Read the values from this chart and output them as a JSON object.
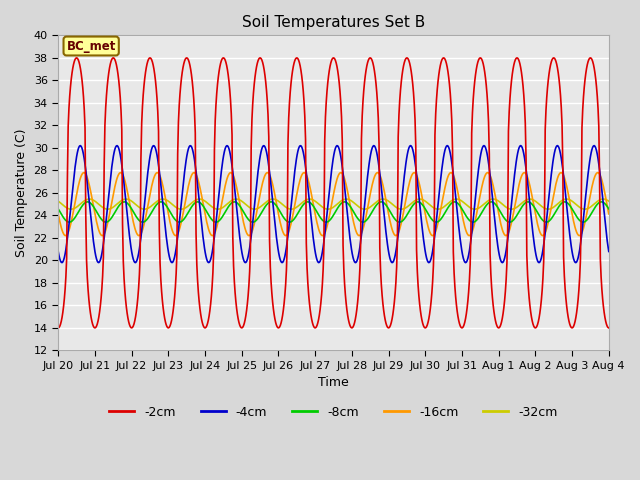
{
  "title": "Soil Temperatures Set B",
  "xlabel": "Time",
  "ylabel": "Soil Temperature (C)",
  "ylim": [
    12,
    40
  ],
  "yticks": [
    12,
    14,
    16,
    18,
    20,
    22,
    24,
    26,
    28,
    30,
    32,
    34,
    36,
    38,
    40
  ],
  "annotation": "BC_met",
  "series": {
    "-2cm": {
      "color": "#dd0000",
      "lw": 1.2,
      "mean": 26.0,
      "amp": 12.0,
      "phase_shift": 0.25,
      "sharpness": 0.35
    },
    "-4cm": {
      "color": "#0000cc",
      "lw": 1.2,
      "mean": 25.0,
      "amp": 5.2,
      "phase_shift": 0.35,
      "sharpness": 1.0
    },
    "-8cm": {
      "color": "#00cc00",
      "lw": 1.2,
      "mean": 24.3,
      "amp": 0.9,
      "phase_shift": 0.55,
      "sharpness": 1.0
    },
    "-16cm": {
      "color": "#ff9900",
      "lw": 1.2,
      "mean": 25.0,
      "amp": 2.8,
      "phase_shift": 0.45,
      "sharpness": 1.0
    },
    "-32cm": {
      "color": "#cccc00",
      "lw": 1.2,
      "mean": 25.0,
      "amp": 0.45,
      "phase_shift": 0.6,
      "sharpness": 1.0
    }
  },
  "xtick_labels": [
    "Jul 20",
    "Jul 21",
    "Jul 22",
    "Jul 23",
    "Jul 24",
    "Jul 25",
    "Jul 26",
    "Jul 27",
    "Jul 28",
    "Jul 29",
    "Jul 30",
    "Jul 31",
    "Aug 1",
    "Aug 2",
    "Aug 3",
    "Aug 4"
  ],
  "bg_color": "#d8d8d8",
  "plot_bg": "#e8e8e8",
  "grid_color": "#ffffff",
  "legend_order": [
    "-2cm",
    "-4cm",
    "-8cm",
    "-16cm",
    "-32cm"
  ]
}
